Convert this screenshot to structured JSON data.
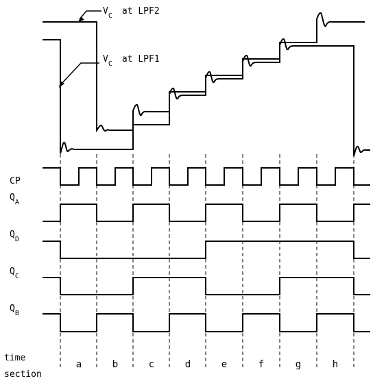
{
  "annotations": {
    "vc_lpf2": {
      "symbol": "V",
      "subscript": "C",
      "text": "at LPF2"
    },
    "vc_lpf1": {
      "symbol": "V",
      "subscript": "C",
      "text": "at LPF1"
    }
  },
  "signals": {
    "cp": {
      "label": "CP",
      "subscript": ""
    },
    "qa": {
      "label": "Q",
      "subscript": "A"
    },
    "qd": {
      "label": "Q",
      "subscript": "D"
    },
    "qc": {
      "label": "Q",
      "subscript": "C"
    },
    "qb": {
      "label": "Q",
      "subscript": "B"
    }
  },
  "sections": [
    "a",
    "b",
    "c",
    "d",
    "e",
    "f",
    "g",
    "h"
  ],
  "footer": {
    "line1": "time",
    "line2": "section"
  }
}
